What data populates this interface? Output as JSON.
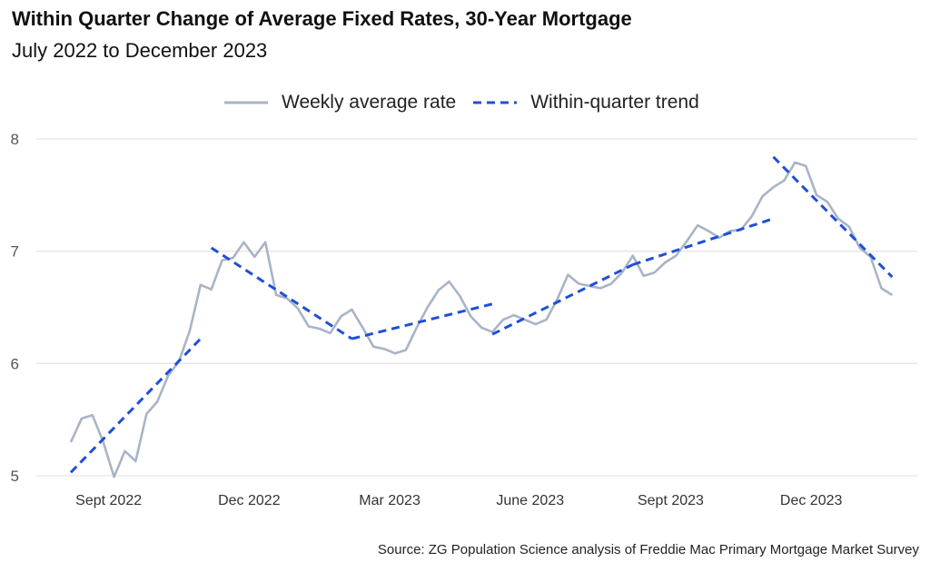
{
  "chart_data": {
    "type": "line",
    "title": "Within Quarter Change of Average Fixed Rates, 30-Year Mortgage",
    "subtitle": "July 2022 to December 2023",
    "source": "Source: ZG Population Science analysis of Freddie Mac Primary Mortgage Market Survey",
    "ylim": [
      5,
      8
    ],
    "yticks": [
      5,
      6,
      7,
      8
    ],
    "xticks": [
      {
        "label": "Sept 2022",
        "index": 3.5
      },
      {
        "label": "Dec 2022",
        "index": 16.5
      },
      {
        "label": "Mar 2023",
        "index": 29.5
      },
      {
        "label": "June 2023",
        "index": 42.5
      },
      {
        "label": "Sept 2023",
        "index": 55.5
      },
      {
        "label": "Dec 2023",
        "index": 68.5
      }
    ],
    "legend": {
      "placement": "top",
      "items": [
        "Weekly average rate",
        "Within-quarter trend"
      ]
    },
    "grid": "horizontal",
    "colors": {
      "weekly": "#a8b4c6",
      "trend": "#1f4fd8",
      "grid": "#e5e5e5"
    },
    "series": [
      {
        "name": "Weekly average rate",
        "style": "solid",
        "values": [
          5.3,
          5.51,
          5.54,
          5.3,
          4.99,
          5.22,
          5.13,
          5.55,
          5.66,
          5.89,
          6.02,
          6.29,
          6.7,
          6.66,
          6.92,
          6.94,
          7.08,
          6.95,
          7.08,
          6.61,
          6.58,
          6.49,
          6.33,
          6.31,
          6.27,
          6.42,
          6.48,
          6.32,
          6.15,
          6.13,
          6.09,
          6.12,
          6.32,
          6.5,
          6.65,
          6.73,
          6.6,
          6.42,
          6.32,
          6.28,
          6.39,
          6.43,
          6.39,
          6.35,
          6.39,
          6.57,
          6.79,
          6.71,
          6.69,
          6.67,
          6.71,
          6.81,
          6.96,
          6.78,
          6.81,
          6.9,
          6.96,
          7.09,
          7.23,
          7.18,
          7.12,
          7.18,
          7.19,
          7.31,
          7.49,
          7.57,
          7.63,
          7.79,
          7.76,
          7.5,
          7.44,
          7.29,
          7.22,
          7.03,
          6.95,
          6.67,
          6.61
        ]
      },
      {
        "name": "Within-quarter trend",
        "style": "dashed",
        "segments": [
          {
            "x": [
              0,
              12
            ],
            "y": [
              5.03,
              6.22
            ]
          },
          {
            "x": [
              13,
              26
            ],
            "y": [
              7.03,
              6.22
            ]
          },
          {
            "x": [
              26,
              39
            ],
            "y": [
              6.22,
              6.53
            ]
          },
          {
            "x": [
              39,
              52
            ],
            "y": [
              6.26,
              6.88
            ]
          },
          {
            "x": [
              52,
              65
            ],
            "y": [
              6.88,
              7.29
            ]
          },
          {
            "x": [
              65,
              76
            ],
            "y": [
              7.84,
              6.77
            ]
          }
        ]
      }
    ]
  }
}
